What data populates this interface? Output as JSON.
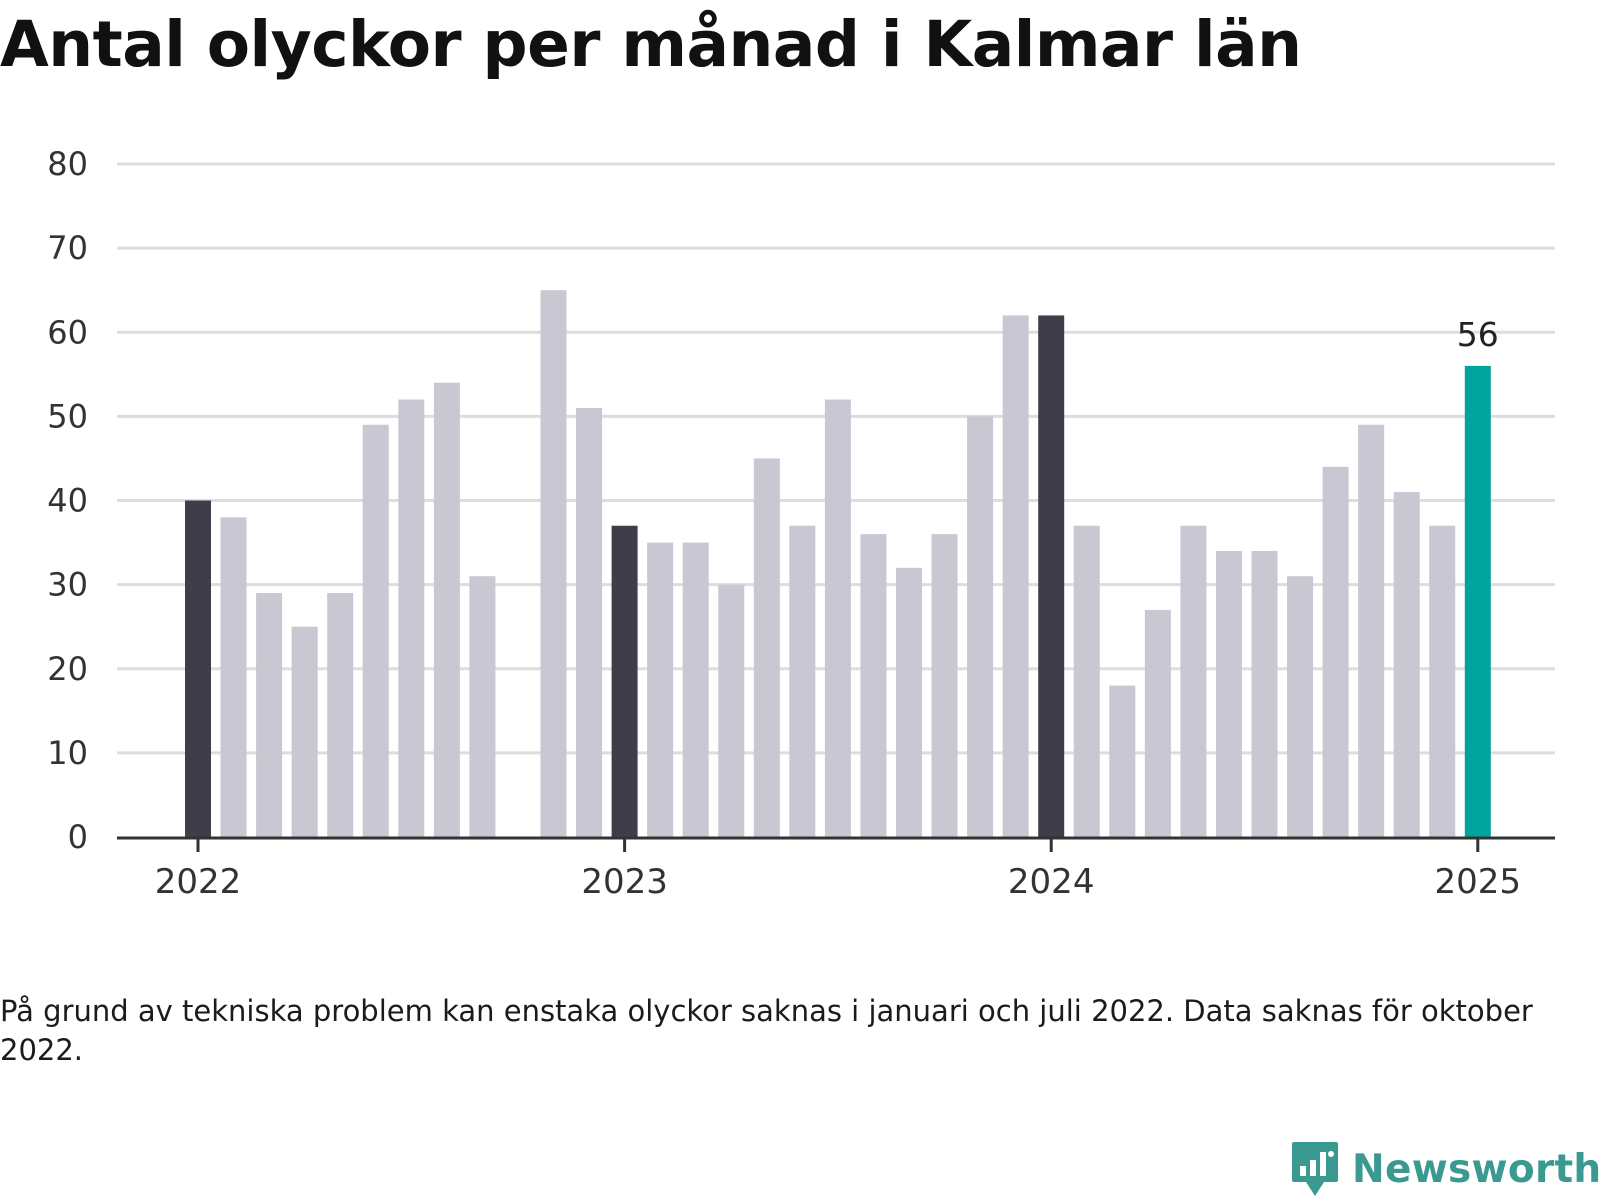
{
  "chart_data": {
    "type": "bar",
    "title": "Antal olyckor per månad i Kalmar län",
    "xlabel": "",
    "ylabel": "",
    "ylim": [
      0,
      80
    ],
    "yticks": [
      0,
      10,
      20,
      30,
      40,
      50,
      60,
      70,
      80
    ],
    "xtick_labels": [
      {
        "label": "2022",
        "index": 0
      },
      {
        "label": "2023",
        "index": 12
      },
      {
        "label": "2024",
        "index": 24
      },
      {
        "label": "2025",
        "index": 36
      }
    ],
    "categories": [
      "2022-01",
      "2022-02",
      "2022-03",
      "2022-04",
      "2022-05",
      "2022-06",
      "2022-07",
      "2022-08",
      "2022-09",
      "2022-10",
      "2022-11",
      "2022-12",
      "2023-01",
      "2023-02",
      "2023-03",
      "2023-04",
      "2023-05",
      "2023-06",
      "2023-07",
      "2023-08",
      "2023-09",
      "2023-10",
      "2023-11",
      "2023-12",
      "2024-01",
      "2024-02",
      "2024-03",
      "2024-04",
      "2024-05",
      "2024-06",
      "2024-07",
      "2024-08",
      "2024-09",
      "2024-10",
      "2024-11",
      "2024-12",
      "2025-01"
    ],
    "values": [
      40,
      38,
      29,
      25,
      29,
      49,
      52,
      54,
      31,
      null,
      65,
      51,
      37,
      35,
      35,
      30,
      45,
      37,
      52,
      36,
      32,
      36,
      50,
      62,
      62,
      37,
      18,
      27,
      37,
      34,
      34,
      31,
      44,
      49,
      41,
      37,
      56
    ],
    "highlight_january_color": "#3f3d4a",
    "bar_color": "#c8c7d2",
    "latest_color": "#00a49a",
    "latest_value_label": "56",
    "grid": true,
    "grid_color": "#dddddd",
    "axis_color": "#333333"
  },
  "footnote": "På grund av tekniska problem kan enstaka olyckor saknas i januari och juli 2022. Data saknas för oktober 2022.",
  "logo": {
    "text": "Newsworthy",
    "icon": "newsworthy-chart-icon",
    "color": "#3a9a92"
  }
}
